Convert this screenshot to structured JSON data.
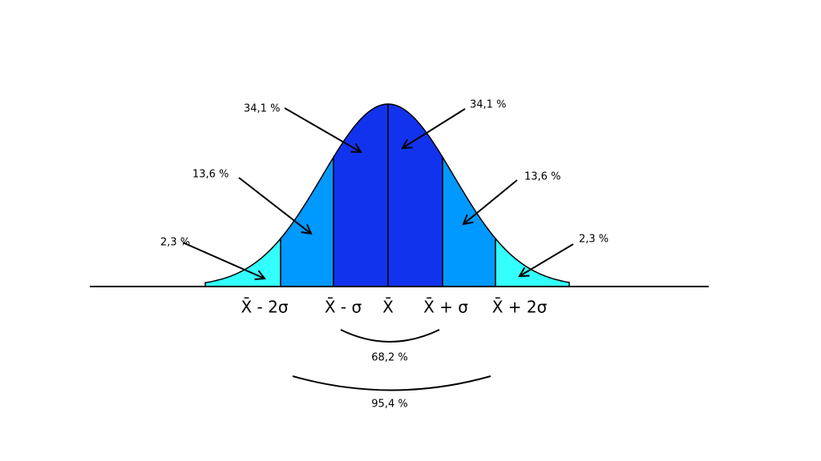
{
  "regions": [
    {
      "label": "2,3 %"
    },
    {
      "label": "13,6 %"
    },
    {
      "label": "34,1 %"
    },
    {
      "label": "34,1 %"
    },
    {
      "label": "13,6 %"
    },
    {
      "label": "2,3 %"
    }
  ],
  "axis_labels": [
    "X̄ - 2σ",
    "X̄ - σ",
    "X̄",
    "X̄ + σ",
    "X̄ + 2σ"
  ],
  "brackets": [
    {
      "label": "68,2 %"
    },
    {
      "label": "95,4 %"
    }
  ]
}
